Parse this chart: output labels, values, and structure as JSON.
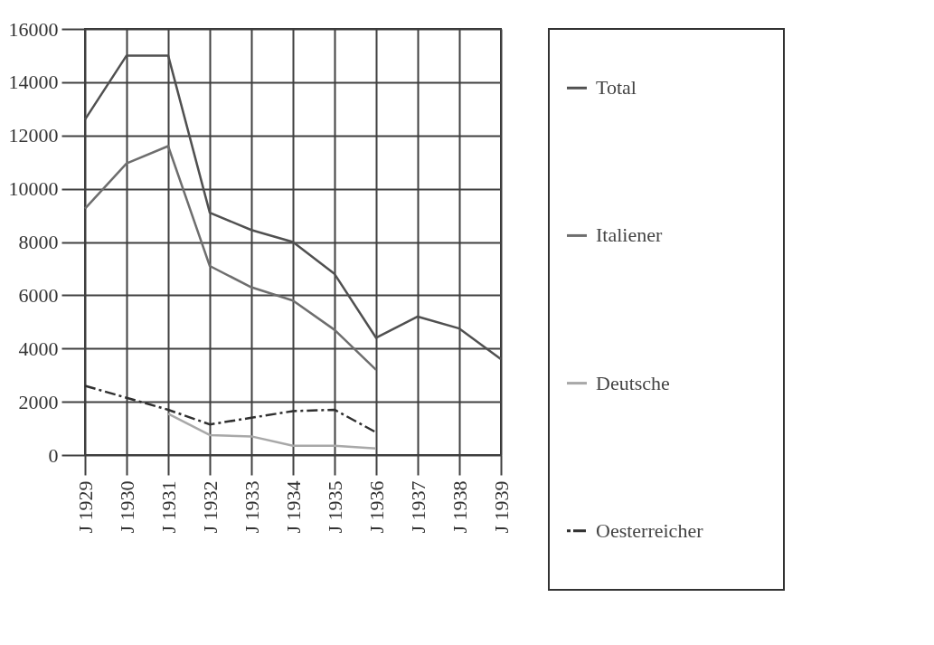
{
  "chart_data": {
    "type": "line",
    "categories": [
      "J 1929",
      "J 1930",
      "J 1931",
      "J 1932",
      "J 1933",
      "J 1934",
      "J 1935",
      "J 1936",
      "J 1937",
      "J 1938",
      "J 1939"
    ],
    "series": [
      {
        "name": "Total",
        "color": "#505050",
        "line_style": "solid",
        "values": [
          12600,
          15000,
          15000,
          9100,
          8450,
          8000,
          6800,
          4400,
          5200,
          4750,
          3600
        ]
      },
      {
        "name": "Italiener",
        "color": "#6e6e6e",
        "line_style": "solid",
        "values": [
          9250,
          10950,
          11600,
          7100,
          6300,
          5800,
          4700,
          3200,
          null,
          null,
          null
        ]
      },
      {
        "name": "Deutsche",
        "color": "#a8a8a8",
        "line_style": "solid",
        "values": [
          null,
          null,
          1550,
          750,
          700,
          350,
          350,
          250,
          null,
          null,
          null
        ]
      },
      {
        "name": "Oesterreicher",
        "color": "#303030",
        "line_style": "dashed",
        "values": [
          2600,
          2150,
          1700,
          1150,
          1400,
          1650,
          1700,
          850,
          null,
          null,
          null
        ]
      }
    ],
    "ylim": [
      0,
      16000
    ],
    "yticks": [
      0,
      2000,
      4000,
      6000,
      8000,
      10000,
      12000,
      14000,
      16000
    ],
    "grid": true,
    "legend": "right",
    "marker": "none"
  }
}
